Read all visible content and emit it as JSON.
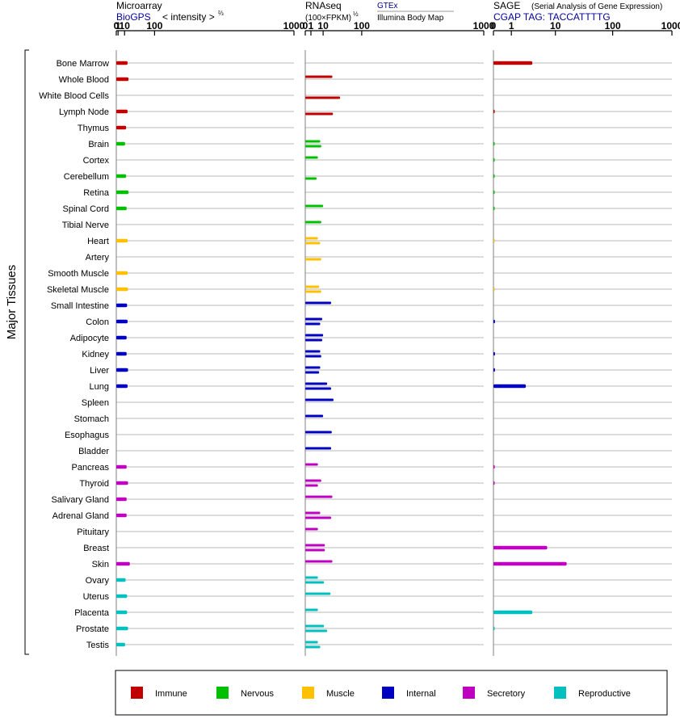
{
  "chart_data": {
    "type": "bar",
    "ylabel": "Major Tissues",
    "tissues": [
      "Bone Marrow",
      "Whole Blood",
      "White Blood Cells",
      "Lymph Node",
      "Thymus",
      "Brain",
      "Cortex",
      "Cerebellum",
      "Retina",
      "Spinal Cord",
      "Tibial Nerve",
      "Heart",
      "Artery",
      "Smooth Muscle",
      "Skeletal Muscle",
      "Small Intestine",
      "Colon",
      "Adipocyte",
      "Kidney",
      "Liver",
      "Lung",
      "Spleen",
      "Stomach",
      "Esophagus",
      "Bladder",
      "Pancreas",
      "Thyroid",
      "Salivary Gland",
      "Adrenal Gland",
      "Pituitary",
      "Breast",
      "Skin",
      "Ovary",
      "Uterus",
      "Placenta",
      "Prostate",
      "Testis"
    ],
    "groups": [
      {
        "name": "Immune",
        "color": "#c00000",
        "rows": [
          0,
          1,
          2,
          3,
          4
        ]
      },
      {
        "name": "Nervous",
        "color": "#00c000",
        "rows": [
          5,
          6,
          7,
          8,
          9,
          10
        ]
      },
      {
        "name": "Muscle",
        "color": "#ffc000",
        "rows": [
          11,
          12,
          13,
          14
        ]
      },
      {
        "name": "Internal",
        "color": "#0000c0",
        "rows": [
          15,
          16,
          17,
          18,
          19,
          20,
          21,
          22,
          23,
          24
        ]
      },
      {
        "name": "Secretory",
        "color": "#c000c0",
        "rows": [
          25,
          26,
          27,
          28,
          29,
          30,
          31
        ]
      },
      {
        "name": "Reproductive",
        "color": "#00c0c0",
        "rows": [
          32,
          33,
          34,
          35,
          36
        ]
      }
    ],
    "panels": [
      {
        "title": "Microarray",
        "subtitle": "BioGPS",
        "scale_label": "< intensity >",
        "scale_exp": "⅔",
        "xscale": "power 2/3",
        "xlim": [
          0,
          1000
        ],
        "ticks": [
          0,
          1,
          10,
          100,
          1000
        ],
        "values": [
          16,
          18,
          null,
          16,
          13,
          11,
          null,
          13,
          18,
          14,
          null,
          16,
          null,
          16,
          17,
          15,
          16,
          14,
          14,
          17,
          16,
          null,
          null,
          null,
          null,
          14,
          17,
          14,
          14,
          null,
          null,
          21,
          12,
          15,
          15,
          17,
          11
        ]
      },
      {
        "title": "RNAseq",
        "scale_label": "(100×FPKM)",
        "scale_exp": "½",
        "xscale": "square root",
        "xlim": [
          0,
          1000
        ],
        "ticks": [
          0,
          1,
          10,
          100,
          1000
        ],
        "gtex_label": "GTEx",
        "illumina_label": "Illumina Body Map",
        "series_gtex": [
          null,
          23,
          null,
          null,
          null,
          7,
          5,
          null,
          null,
          10,
          8,
          5,
          null,
          null,
          6,
          21,
          9,
          10,
          7,
          7,
          15,
          25,
          10,
          22,
          21,
          5,
          8,
          23,
          7,
          5,
          12,
          23,
          5,
          20,
          5,
          11,
          5
        ],
        "series_illumina": [
          null,
          null,
          38,
          24,
          null,
          8,
          null,
          4,
          null,
          null,
          null,
          7,
          8,
          null,
          8,
          null,
          7,
          9,
          8,
          6,
          21,
          null,
          null,
          null,
          null,
          null,
          5,
          null,
          21,
          null,
          12,
          null,
          11,
          null,
          null,
          15,
          7
        ]
      },
      {
        "title": "SAGE",
        "title_note": "(Serial Analysis of Gene Expression)",
        "subtitle": "CGAP TAG: TACCATTTTG",
        "xscale": "logarithmic",
        "xlim": [
          0,
          1000
        ],
        "ticks": [
          0,
          1,
          10,
          100,
          1000
        ],
        "values": [
          3.5,
          null,
          null,
          0.05,
          null,
          0.03,
          0.02,
          0.03,
          0.03,
          0.03,
          null,
          0.01,
          null,
          null,
          0.01,
          null,
          0.06,
          null,
          0.06,
          0.06,
          2.5,
          null,
          null,
          null,
          null,
          0.05,
          0.04,
          null,
          null,
          null,
          7,
          16,
          null,
          null,
          3.5,
          0.03,
          null
        ]
      }
    ],
    "legend": [
      "Immune",
      "Nervous",
      "Muscle",
      "Internal",
      "Secretory",
      "Reproductive"
    ]
  }
}
